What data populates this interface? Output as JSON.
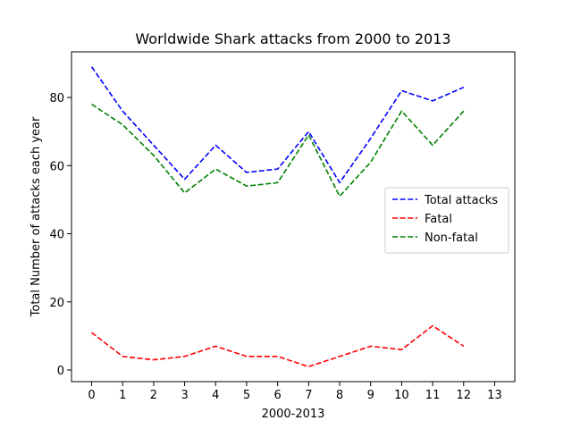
{
  "chart_data": {
    "type": "line",
    "title": "Worldwide Shark attacks from 2000 to 2013",
    "xlabel": "2000-2013",
    "ylabel": "Total Number of attacks each year",
    "xlim": [
      -0.65,
      13.65
    ],
    "ylim": [
      -3.4,
      93.4
    ],
    "x_ticks": [
      0,
      1,
      2,
      3,
      4,
      5,
      6,
      7,
      8,
      9,
      10,
      11,
      12,
      13
    ],
    "y_ticks": [
      0,
      20,
      40,
      60,
      80
    ],
    "x": [
      0,
      1,
      2,
      3,
      4,
      5,
      6,
      7,
      8,
      9,
      10,
      11,
      12
    ],
    "grid": false,
    "legend_position": "center-right",
    "series": [
      {
        "name": "Total attacks",
        "color": "#0000ff",
        "line_style": "dashed",
        "values": [
          89,
          76,
          66,
          56,
          66,
          58,
          59,
          70,
          55,
          68,
          82,
          79,
          83
        ]
      },
      {
        "name": "Fatal",
        "color": "#ff0000",
        "line_style": "dashed",
        "values": [
          11,
          4,
          3,
          4,
          7,
          4,
          4,
          1,
          4,
          7,
          6,
          13,
          7
        ]
      },
      {
        "name": "Non-fatal",
        "color": "#008000",
        "line_style": "dashed",
        "values": [
          78,
          72,
          63,
          52,
          59,
          54,
          55,
          69,
          51,
          61,
          76,
          66,
          76
        ]
      }
    ]
  }
}
